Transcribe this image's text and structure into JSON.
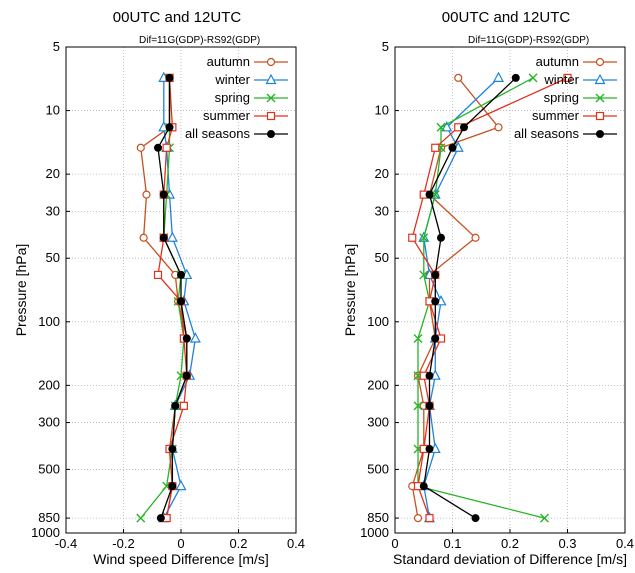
{
  "chart_data": [
    {
      "type": "line",
      "title": "00UTC and 12UTC",
      "subtitle": "Dif=11G(GDP)-RS92(GDP)",
      "xlabel": "Wind speed Difference [m/s]",
      "ylabel": "Pressure [hPa]",
      "xlim": [
        -0.4,
        0.4
      ],
      "xticks": [
        "-0.4",
        "-0.2",
        "0",
        "0.2",
        "0.4"
      ],
      "yscale": "log",
      "ylim": [
        1000,
        5
      ],
      "yticks": [
        "5",
        "10",
        "20",
        "30",
        "50",
        "100",
        "200",
        "300",
        "500",
        "850",
        "1000"
      ],
      "grid": true,
      "legend_position": "top-right",
      "y": [
        7,
        12,
        15,
        25,
        40,
        60,
        80,
        120,
        180,
        250,
        400,
        600,
        850
      ],
      "series": [
        {
          "name": "autumn",
          "color": "#c8501e",
          "marker": "circle",
          "x": [
            -0.04,
            -0.04,
            -0.14,
            -0.12,
            -0.13,
            -0.02,
            -0.01,
            0.02,
            0.02,
            -0.02,
            -0.04,
            -0.03,
            -0.05
          ]
        },
        {
          "name": "winter",
          "color": "#1e82dc",
          "marker": "triangle",
          "x": [
            -0.06,
            -0.06,
            -0.05,
            -0.04,
            -0.03,
            0.02,
            0.01,
            0.05,
            0.03,
            -0.02,
            -0.03,
            0.0,
            -0.06
          ]
        },
        {
          "name": "spring",
          "color": "#28b428",
          "marker": "x",
          "x": [
            -0.04,
            -0.04,
            -0.04,
            -0.05,
            -0.06,
            0.0,
            -0.01,
            0.01,
            0.0,
            -0.02,
            -0.03,
            -0.05,
            -0.14
          ]
        },
        {
          "name": "summer",
          "color": "#e1321e",
          "marker": "square",
          "x": [
            -0.04,
            -0.03,
            -0.05,
            -0.06,
            -0.06,
            -0.08,
            0.0,
            0.01,
            0.02,
            0.01,
            -0.04,
            -0.03,
            -0.05
          ]
        },
        {
          "name": "all seasons",
          "color": "#000000",
          "marker": "filled-circle",
          "x": [
            -0.04,
            -0.04,
            -0.08,
            -0.06,
            -0.06,
            0.0,
            0.0,
            0.02,
            0.02,
            -0.02,
            -0.03,
            -0.03,
            -0.07
          ]
        }
      ]
    },
    {
      "type": "line",
      "title": "00UTC and 12UTC",
      "subtitle": "Dif=11G(GDP)-RS92(GDP)",
      "xlabel": "Standard deviation of Difference [m/s]",
      "ylabel": "Pressure [hPa]",
      "xlim": [
        0,
        0.4
      ],
      "xticks": [
        "0",
        "0.1",
        "0.2",
        "0.3",
        "0.4"
      ],
      "yscale": "log",
      "ylim": [
        1000,
        5
      ],
      "yticks": [
        "5",
        "10",
        "20",
        "30",
        "50",
        "100",
        "200",
        "300",
        "500",
        "850",
        "1000"
      ],
      "grid": true,
      "legend_position": "top-right",
      "y": [
        7,
        12,
        15,
        25,
        40,
        60,
        80,
        120,
        180,
        250,
        400,
        600,
        850
      ],
      "series": [
        {
          "name": "autumn",
          "color": "#c8501e",
          "marker": "circle",
          "x": [
            0.11,
            0.18,
            0.08,
            0.06,
            0.14,
            0.06,
            0.06,
            0.07,
            0.04,
            0.05,
            0.05,
            0.03,
            0.04
          ]
        },
        {
          "name": "winter",
          "color": "#1e82dc",
          "marker": "triangle",
          "x": [
            0.18,
            0.09,
            0.11,
            0.07,
            0.05,
            0.06,
            0.08,
            0.07,
            0.07,
            0.06,
            0.07,
            0.05,
            0.06
          ]
        },
        {
          "name": "spring",
          "color": "#28b428",
          "marker": "x",
          "x": [
            0.24,
            0.08,
            0.08,
            0.07,
            0.05,
            0.05,
            0.06,
            0.04,
            0.04,
            0.04,
            0.04,
            0.04,
            0.26
          ]
        },
        {
          "name": "summer",
          "color": "#e1321e",
          "marker": "square",
          "x": [
            0.3,
            0.11,
            0.07,
            0.05,
            0.03,
            0.07,
            0.06,
            0.08,
            0.05,
            0.06,
            0.05,
            0.04,
            0.06
          ]
        },
        {
          "name": "all seasons",
          "color": "#000000",
          "marker": "filled-circle",
          "x": [
            0.21,
            0.12,
            0.1,
            0.06,
            0.08,
            0.07,
            0.07,
            0.07,
            0.06,
            0.06,
            0.06,
            0.05,
            0.14
          ]
        }
      ]
    }
  ]
}
